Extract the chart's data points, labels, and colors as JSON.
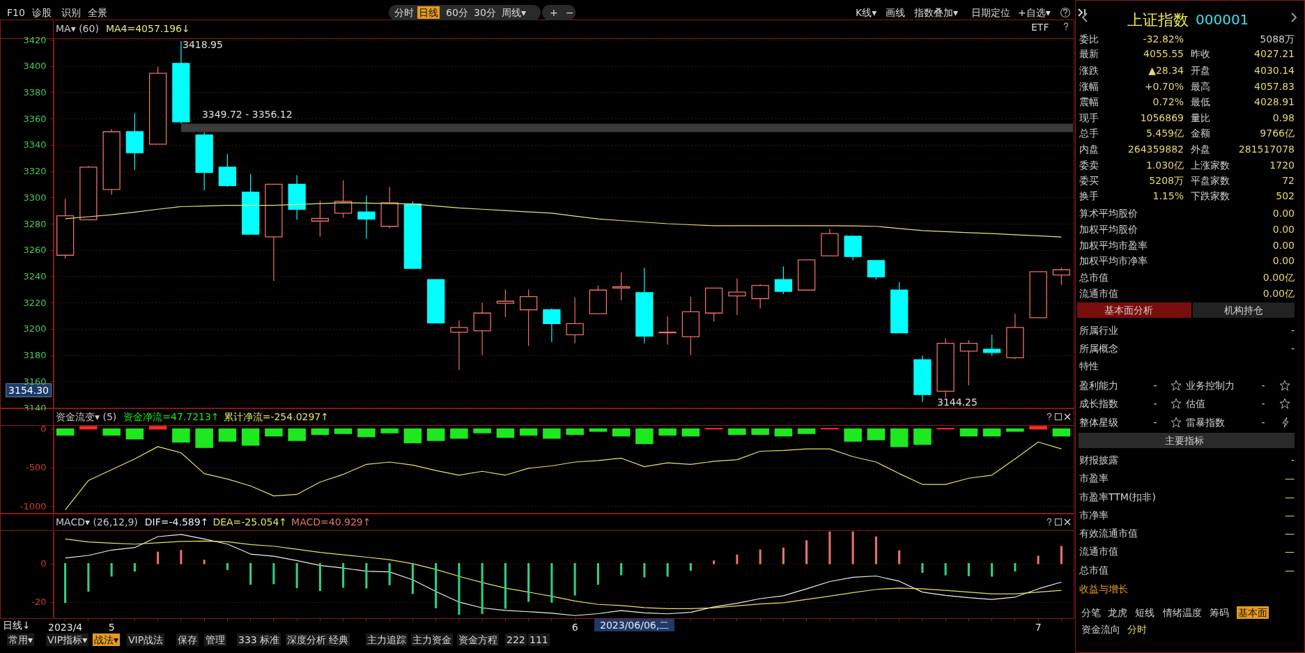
{
  "chart_data": [
    {
      "type": "candlestick",
      "title": "MA▾ (60)",
      "annotations": [
        "ETF",
        "3418.95",
        "3144.25",
        "3154.30"
      ],
      "categories": [
        "2023/4",
        null,
        "5",
        null,
        null,
        null,
        null,
        null,
        null,
        null,
        null,
        null,
        null,
        null,
        null,
        null,
        null,
        null,
        null,
        null,
        null,
        null,
        "6",
        null,
        null,
        null,
        null,
        null,
        null,
        null,
        null,
        null,
        null,
        null,
        null,
        null,
        null,
        null,
        null,
        null,
        null,
        null,
        "7",
        null
      ],
      "ohlc": [
        [
          3256,
          3299,
          3253.5,
          3286
        ],
        [
          3283,
          3324,
          3283,
          3323
        ],
        [
          3306,
          3352,
          3302,
          3350
        ],
        [
          3350,
          3364,
          3321,
          3334
        ],
        [
          3340.5,
          3399.5,
          3340.5,
          3394.5
        ],
        [
          3402,
          3418.95,
          3356.12,
          3357.5
        ],
        [
          3347.5,
          3349.72,
          3305.5,
          3319
        ],
        [
          3323,
          3333,
          3308,
          3309
        ],
        [
          3304,
          3318,
          3272,
          3272
        ],
        [
          3270,
          3310,
          3236.5,
          3310
        ],
        [
          3310,
          3317,
          3283,
          3291
        ],
        [
          3282,
          3297.5,
          3270,
          3284
        ],
        [
          3288,
          3313,
          3284.5,
          3297
        ],
        [
          3289,
          3301.5,
          3268.5,
          3283.5
        ],
        [
          3278,
          3308,
          3276.5,
          3296
        ],
        [
          3295,
          3297,
          3246,
          3246
        ],
        [
          3237.5,
          3237.5,
          3204.5,
          3204.5
        ],
        [
          3197.5,
          3206.5,
          3168.5,
          3201
        ],
        [
          3198.5,
          3220,
          3180,
          3212
        ],
        [
          3219.5,
          3230,
          3209,
          3221
        ],
        [
          3214.5,
          3230,
          3187,
          3224.5
        ],
        [
          3214.5,
          3215.5,
          3190,
          3204
        ],
        [
          3195.5,
          3224,
          3189,
          3204
        ],
        [
          3211.5,
          3233,
          3211.5,
          3229.5
        ],
        [
          3231,
          3243,
          3221.5,
          3232
        ],
        [
          3227.5,
          3246.5,
          3189,
          3194.5
        ],
        [
          3197,
          3209.5,
          3188,
          3197.5
        ],
        [
          3194,
          3224.5,
          3180,
          3213
        ],
        [
          3212,
          3231,
          3205.5,
          3231
        ],
        [
          3225,
          3238.5,
          3210.5,
          3228
        ],
        [
          3223,
          3234,
          3215.5,
          3233
        ],
        [
          3237.5,
          3247.5,
          3226.5,
          3228.5
        ],
        [
          3229.5,
          3252.5,
          3229,
          3252.5
        ],
        [
          3255.5,
          3276,
          3255.5,
          3272.5
        ],
        [
          3270.5,
          3270.5,
          3252,
          3255
        ],
        [
          3252,
          3252,
          3237.5,
          3239.5
        ],
        [
          3229.5,
          3235.5,
          3197,
          3197
        ],
        [
          3176.5,
          3179.5,
          3144.25,
          3150
        ],
        [
          3152.5,
          3192.5,
          3147.5,
          3189
        ],
        [
          3183,
          3191.5,
          3157,
          3189
        ],
        [
          3184.5,
          3195.5,
          3179.5,
          3182
        ],
        [
          3178,
          3211.5,
          3177,
          3201
        ],
        [
          3208.5,
          3243.5,
          3208.5,
          3243.5
        ],
        [
          3241,
          3246.5,
          3233.5,
          3245
        ]
      ],
      "colors": [
        "#f0706a",
        "#f0706a",
        "#f0706a",
        "#00ffff",
        "#f0706a",
        "#00ffff",
        "#00ffff",
        "#00ffff",
        "#00ffff",
        "#f0706a",
        "#00ffff",
        "#f0706a",
        "#f0706a",
        "#00ffff",
        "#f0706a",
        "#00ffff",
        "#00ffff",
        "#f0706a",
        "#f0706a",
        "#f0706a",
        "#f0706a",
        "#00ffff",
        "#f0706a",
        "#f0706a",
        "#f0706a",
        "#00ffff",
        "#f0706a",
        "#f0706a",
        "#f0706a",
        "#f0706a",
        "#f0706a",
        "#00ffff",
        "#f0706a",
        "#f0706a",
        "#00ffff",
        "#00ffff",
        "#00ffff",
        "#00ffff",
        "#f0706a",
        "#f0706a",
        "#00ffff",
        "#f0706a",
        "#f0706a",
        "#f0706a"
      ],
      "series": [
        {
          "type": "line",
          "name": "MA4=4057.196↓",
          "color": "#e6e67a",
          "values": [
            3283.8,
            3285.3,
            3286.8,
            3288.8,
            3291,
            3293,
            3293.5,
            3294,
            3294,
            3294,
            3294.7,
            3295.3,
            3296,
            3295.7,
            3295.3,
            3295,
            3293.5,
            3292,
            3291,
            3290,
            3289,
            3288,
            3285.8,
            3283.6,
            3282.4,
            3281.2,
            3280,
            3279.2,
            3278.5,
            3278.5,
            3278.5,
            3278.5,
            3278.5,
            3278.5,
            3278.3,
            3278,
            3276.4,
            3274.8,
            3274,
            3273.2,
            3272.5,
            3271.6,
            3270.8,
            3269.9
          ]
        }
      ],
      "bands": [
        {
          "axis": "y",
          "from": 3349.72,
          "to": 3356.12,
          "label": "3349.72 - 3356.12",
          "color": "#3c3c3c"
        }
      ],
      "ylim": [
        3140,
        3420
      ],
      "yticks": [
        3140,
        3160,
        3180,
        3200,
        3220,
        3240,
        3260,
        3280,
        3300,
        3320,
        3340,
        3360,
        3380,
        3400,
        3420
      ],
      "grid": "y",
      "tick_labels": "y"
    },
    {
      "type": "bar",
      "title": "资金流变▾ (5)",
      "categories": [
        "2023/4",
        null,
        "5",
        null,
        null,
        null,
        null,
        null,
        null,
        null,
        null,
        null,
        null,
        null,
        null,
        null,
        null,
        null,
        null,
        null,
        null,
        null,
        "6",
        null,
        null,
        null,
        null,
        null,
        null,
        null,
        null,
        null,
        null,
        null,
        null,
        null,
        null,
        null,
        null,
        null,
        null,
        null,
        "7",
        null
      ],
      "series": [
        {
          "type": "bar",
          "name": "资金净流=47.7213↑",
          "values": [
            -80,
            30,
            -80,
            -130,
            30,
            -170,
            -240,
            -160,
            -210,
            -90,
            -150,
            -70,
            -60,
            -100,
            -50,
            -180,
            -150,
            -120,
            -50,
            -110,
            -80,
            -120,
            -70,
            -30,
            -90,
            -190,
            -80,
            -90,
            5,
            -70,
            -70,
            -90,
            -60,
            5,
            -160,
            -140,
            -230,
            -200,
            5,
            -90,
            -90,
            -30,
            30,
            -90
          ],
          "colors": [
            "#1ee81e",
            "#ff2a2a",
            "#1ee81e",
            "#1ee81e",
            "#ff2a2a",
            "#1ee81e",
            "#1ee81e",
            "#1ee81e",
            "#1ee81e",
            "#1ee81e",
            "#1ee81e",
            "#1ee81e",
            "#1ee81e",
            "#1ee81e",
            "#1ee81e",
            "#1ee81e",
            "#1ee81e",
            "#1ee81e",
            "#1ee81e",
            "#1ee81e",
            "#1ee81e",
            "#1ee81e",
            "#1ee81e",
            "#1ee81e",
            "#1ee81e",
            "#1ee81e",
            "#1ee81e",
            "#1ee81e",
            "#ff2a2a",
            "#1ee81e",
            "#1ee81e",
            "#1ee81e",
            "#1ee81e",
            "#ff2a2a",
            "#1ee81e",
            "#1ee81e",
            "#1ee81e",
            "#1ee81e",
            "#ff2a2a",
            "#1ee81e",
            "#1ee81e",
            "#1ee81e",
            "#ff2a2a",
            "#1ee81e"
          ]
        },
        {
          "type": "line",
          "name": "累计净流=-254.0297↑",
          "color": "#e6e65c",
          "values": [
            -1050,
            -670,
            -530,
            -390,
            -230,
            -310,
            -580,
            -650,
            -740,
            -870,
            -850,
            -690,
            -590,
            -460,
            -430,
            -470,
            -540,
            -600,
            -550,
            -600,
            -510,
            -480,
            -430,
            -410,
            -380,
            -490,
            -440,
            -460,
            -420,
            -400,
            -290,
            -280,
            -260,
            -260,
            -360,
            -430,
            -580,
            -720,
            -720,
            -640,
            -600,
            -390,
            -170,
            -260
          ]
        }
      ],
      "ylim": [
        -1090,
        40
      ],
      "yticks": [
        -1000,
        -500,
        0
      ],
      "grid": "y",
      "tick_labels": "y"
    },
    {
      "type": "bar",
      "title": "MACD▾ (26,12,9)",
      "annotations": [
        "日线↓",
        "2023/06/06,二"
      ],
      "categories": [
        "2023/4",
        null,
        "5",
        null,
        null,
        null,
        null,
        null,
        null,
        null,
        null,
        null,
        null,
        null,
        null,
        null,
        null,
        null,
        null,
        null,
        null,
        null,
        "6",
        null,
        null,
        null,
        null,
        null,
        null,
        null,
        null,
        null,
        null,
        null,
        null,
        null,
        null,
        null,
        null,
        null,
        null,
        null,
        "7",
        null
      ],
      "series": [
        {
          "type": "line",
          "name": "DIF=-4.589↑",
          "color": "#f0f0f0",
          "values": [
            3.0,
            4.3,
            7.1,
            8.4,
            14.1,
            15.2,
            12.9,
            10.2,
            5.0,
            3.9,
            1.6,
            -0.9,
            -2.3,
            -3.9,
            -4.3,
            -8.4,
            -14.5,
            -20.0,
            -23.0,
            -24.3,
            -25.0,
            -25.8,
            -27.0,
            -26.0,
            -24.4,
            -25.6,
            -26.1,
            -25.3,
            -22.5,
            -20.6,
            -18.2,
            -16.7,
            -13.1,
            -9.3,
            -7.1,
            -6.4,
            -9.1,
            -14.8,
            -16.5,
            -17.7,
            -18.6,
            -17.4,
            -13.1,
            -9.6
          ]
        },
        {
          "type": "line",
          "name": "DEA=-25.054↑",
          "color": "#e6e65c",
          "values": [
            12.9,
            11.3,
            10.7,
            10.2,
            10.9,
            11.6,
            11.8,
            11.4,
            10.0,
            9.1,
            7.5,
            5.9,
            4.6,
            3.4,
            2.1,
            0,
            -3.0,
            -6.6,
            -9.8,
            -12.7,
            -14.8,
            -17.0,
            -19.4,
            -21.2,
            -21.8,
            -22.9,
            -23.4,
            -23.4,
            -23.0,
            -22.0,
            -21.0,
            -20.3,
            -18.6,
            -16.9,
            -15.1,
            -13.4,
            -12.7,
            -13.1,
            -13.9,
            -14.8,
            -15.7,
            -15.7,
            -14.8,
            -13.9
          ]
        },
        {
          "type": "bar",
          "name": "MACD=40.929↑",
          "values": [
            -20.2,
            -14.3,
            -6.4,
            -3.8,
            5.9,
            6.8,
            1.8,
            -3.0,
            -10.7,
            -10.4,
            -12.5,
            -13.9,
            -12.3,
            -12.7,
            -10.9,
            -15.5,
            -22.9,
            -26.4,
            -25.9,
            -23.2,
            -19.6,
            -20,
            -16.3,
            -10.7,
            -5.8,
            -6.9,
            -6.5,
            -3.4,
            1.4,
            4.5,
            7.1,
            8.1,
            11.9,
            16.5,
            16.5,
            13.9,
            6.7,
            -4.5,
            -5.8,
            -6.2,
            -6.5,
            -3.8,
            3.8,
            8.9
          ],
          "colors": [
            "#30d080",
            "#30d080",
            "#30d080",
            "#30d080",
            "#e8736b",
            "#e8736b",
            "#e8736b",
            "#30d080",
            "#30d080",
            "#30d080",
            "#30d080",
            "#30d080",
            "#30d080",
            "#30d080",
            "#30d080",
            "#30d080",
            "#30d080",
            "#30d080",
            "#30d080",
            "#30d080",
            "#30d080",
            "#30d080",
            "#30d080",
            "#30d080",
            "#30d080",
            "#30d080",
            "#30d080",
            "#30d080",
            "#e8736b",
            "#e8736b",
            "#e8736b",
            "#e8736b",
            "#e8736b",
            "#e8736b",
            "#e8736b",
            "#e8736b",
            "#e8736b",
            "#30d080",
            "#30d080",
            "#30d080",
            "#30d080",
            "#30d080",
            "#e8736b",
            "#e8736b"
          ]
        }
      ],
      "ylim": [
        -28,
        17
      ],
      "yticks": [
        -20,
        0
      ],
      "grid": "y"
    },
    {
      "type": "other",
      "annotations": [
        "F10",
        "诊股",
        "识别",
        "全景",
        "分时",
        "日线",
        "60分",
        "30分",
        "周线▾",
        "+",
        "−",
        "K线▾",
        "画线",
        "指数叠加▾",
        "日期定位",
        "+自选▾"
      ]
    },
    {
      "type": "other",
      "annotations": [
        "常用▾",
        "VIP指标▾",
        "战法▾",
        "VIP战法",
        "保存",
        "管理",
        "333",
        "标准",
        "深度分析",
        "经典",
        "主力追踪",
        "主力资金",
        "资金方程",
        "222",
        "111"
      ]
    },
    {
      "type": "other",
      "title": "上证指数",
      "subtitle": "000001",
      "annotations": [
        "委比",
        "-32.82%",
        "5088万",
        "最新",
        "4055.55",
        "昨收",
        "4027.21",
        "涨跌",
        "▲28.34",
        "开盘",
        "4030.14",
        "涨幅",
        "+0.70%",
        "最高",
        "4057.83",
        "震幅",
        "0.72%",
        "最低",
        "4028.91",
        "现手",
        "1056869",
        "量比",
        "0.98",
        "总手",
        "5.459亿",
        "金额",
        "9766亿",
        "内盘",
        "264359882",
        "外盘",
        "281517078",
        "委卖",
        "1.030亿",
        "上涨家数",
        "1720",
        "委买",
        "5208万",
        "平盘家数",
        "72",
        "换手",
        "1.15%",
        "下跌家数",
        "502",
        "算术平均股价",
        "0.00",
        "加权平均股价",
        "0.00",
        "加权平均市盈率",
        "0.00",
        "加权平均市净率",
        "0.00",
        "总市值",
        "0.00亿",
        "流通市值",
        "0.00亿",
        "基本面分析",
        "机构持仓",
        "所属行业",
        "-",
        "所属概念",
        "-",
        "特性",
        "盈利能力",
        "-",
        "业务控制力",
        "-",
        "成长指数",
        "-",
        "估值",
        "-",
        "整体星级",
        "-",
        "雷暴指数",
        "-",
        "主要指标",
        "财报披露",
        "-",
        "市盈率",
        "—",
        "市盈率TTM(扣非)",
        "—",
        "市净率",
        "—",
        "有效流通市值",
        "—",
        "流通市值",
        "—",
        "总市值",
        "—",
        "收益与增长",
        "分笔",
        "龙虎",
        "短线",
        "情绪温度",
        "筹码",
        "基本面",
        "资金流向",
        "分时"
      ]
    }
  ]
}
